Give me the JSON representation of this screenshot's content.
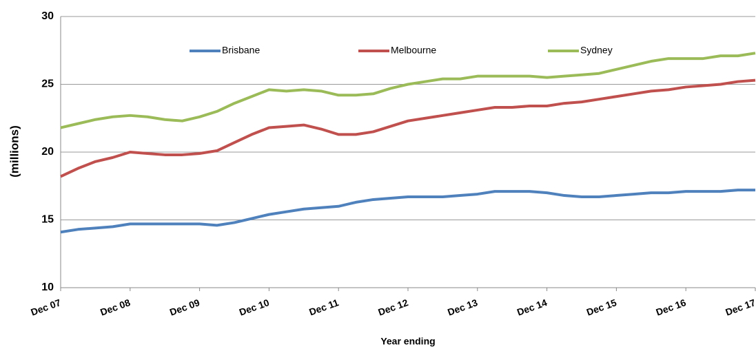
{
  "chart_data": {
    "type": "line",
    "y_label": "(millions)",
    "x_label": "Year ending",
    "categories": [
      "Dec 07",
      null,
      null,
      null,
      "Dec 08",
      null,
      null,
      null,
      "Dec 09",
      null,
      null,
      null,
      "Dec 10",
      null,
      null,
      null,
      "Dec 11",
      null,
      null,
      null,
      "Dec 12",
      null,
      null,
      null,
      "Dec 13",
      null,
      null,
      null,
      "Dec 14",
      null,
      null,
      null,
      "Dec 15",
      null,
      null,
      null,
      "Dec 16",
      null,
      null,
      null,
      "Dec 17"
    ],
    "series": [
      {
        "name": "Brisbane",
        "color": "#4f81bd",
        "values": [
          14.1,
          14.3,
          14.4,
          14.5,
          14.7,
          14.7,
          14.7,
          14.7,
          14.7,
          14.6,
          14.8,
          15.1,
          15.4,
          15.6,
          15.8,
          15.9,
          16.0,
          16.3,
          16.5,
          16.6,
          16.7,
          16.7,
          16.7,
          16.8,
          16.9,
          17.1,
          17.1,
          17.1,
          17.0,
          16.8,
          16.7,
          16.7,
          16.8,
          16.9,
          17.0,
          17.0,
          17.1,
          17.1,
          17.1,
          17.2,
          17.2
        ]
      },
      {
        "name": "Melbourne",
        "color": "#c0504d",
        "values": [
          18.2,
          18.8,
          19.3,
          19.6,
          20.0,
          19.9,
          19.8,
          19.8,
          19.9,
          20.1,
          20.7,
          21.3,
          21.8,
          21.9,
          22.0,
          21.7,
          21.3,
          21.3,
          21.5,
          21.9,
          22.3,
          22.5,
          22.7,
          22.9,
          23.1,
          23.3,
          23.3,
          23.4,
          23.4,
          23.6,
          23.7,
          23.9,
          24.1,
          24.3,
          24.5,
          24.6,
          24.8,
          24.9,
          25.0,
          25.2,
          25.3
        ]
      },
      {
        "name": "Sydney",
        "color": "#9bbb59",
        "values": [
          21.8,
          22.1,
          22.4,
          22.6,
          22.7,
          22.6,
          22.4,
          22.3,
          22.6,
          23.0,
          23.6,
          24.1,
          24.6,
          24.5,
          24.6,
          24.5,
          24.2,
          24.2,
          24.3,
          24.7,
          25.0,
          25.2,
          25.4,
          25.4,
          25.6,
          25.6,
          25.6,
          25.6,
          25.5,
          25.6,
          25.7,
          25.8,
          26.1,
          26.4,
          26.7,
          26.9,
          26.9,
          26.9,
          27.1,
          27.1,
          27.3
        ]
      }
    ],
    "ylim": [
      10,
      30
    ],
    "yticks": [
      10,
      15,
      20,
      25,
      30
    ],
    "grid": true,
    "legend": "top"
  }
}
